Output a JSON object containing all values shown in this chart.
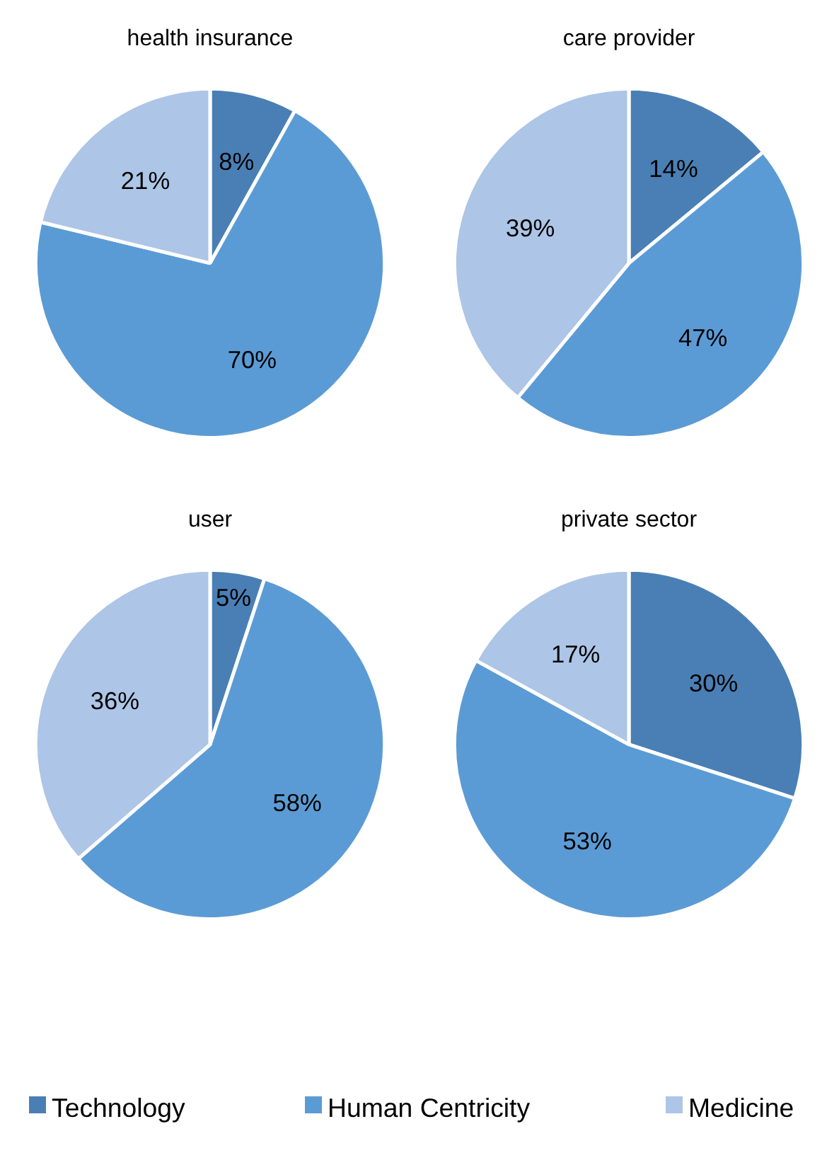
{
  "chart_data": [
    {
      "type": "pie",
      "title": "health insurance",
      "categories": [
        "Technology",
        "Human Centricity",
        "Medicine"
      ],
      "values": [
        8,
        70,
        21
      ],
      "value_labels": [
        "8%",
        "70%",
        "21%"
      ],
      "colors": [
        "#4a7fb5",
        "#5b9bd5",
        "#adc5e6"
      ],
      "legend": "bottom"
    },
    {
      "type": "pie",
      "title": "care provider",
      "values": [
        14,
        47,
        39
      ],
      "value_labels": [
        "14%",
        "47%",
        "39%"
      ],
      "colors": [
        "#4a7fb5",
        "#5b9bd5",
        "#adc5e6"
      ]
    },
    {
      "type": "pie",
      "title": "user",
      "values": [
        5,
        58,
        36
      ],
      "value_labels": [
        "5%",
        "58%",
        "36%"
      ],
      "colors": [
        "#4a7fb5",
        "#5b9bd5",
        "#adc5e6"
      ]
    },
    {
      "type": "pie",
      "title": "private sector",
      "values": [
        30,
        53,
        17
      ],
      "value_labels": [
        "30%",
        "53%",
        "17%"
      ],
      "colors": [
        "#4a7fb5",
        "#5b9bd5",
        "#adc5e6"
      ]
    }
  ]
}
